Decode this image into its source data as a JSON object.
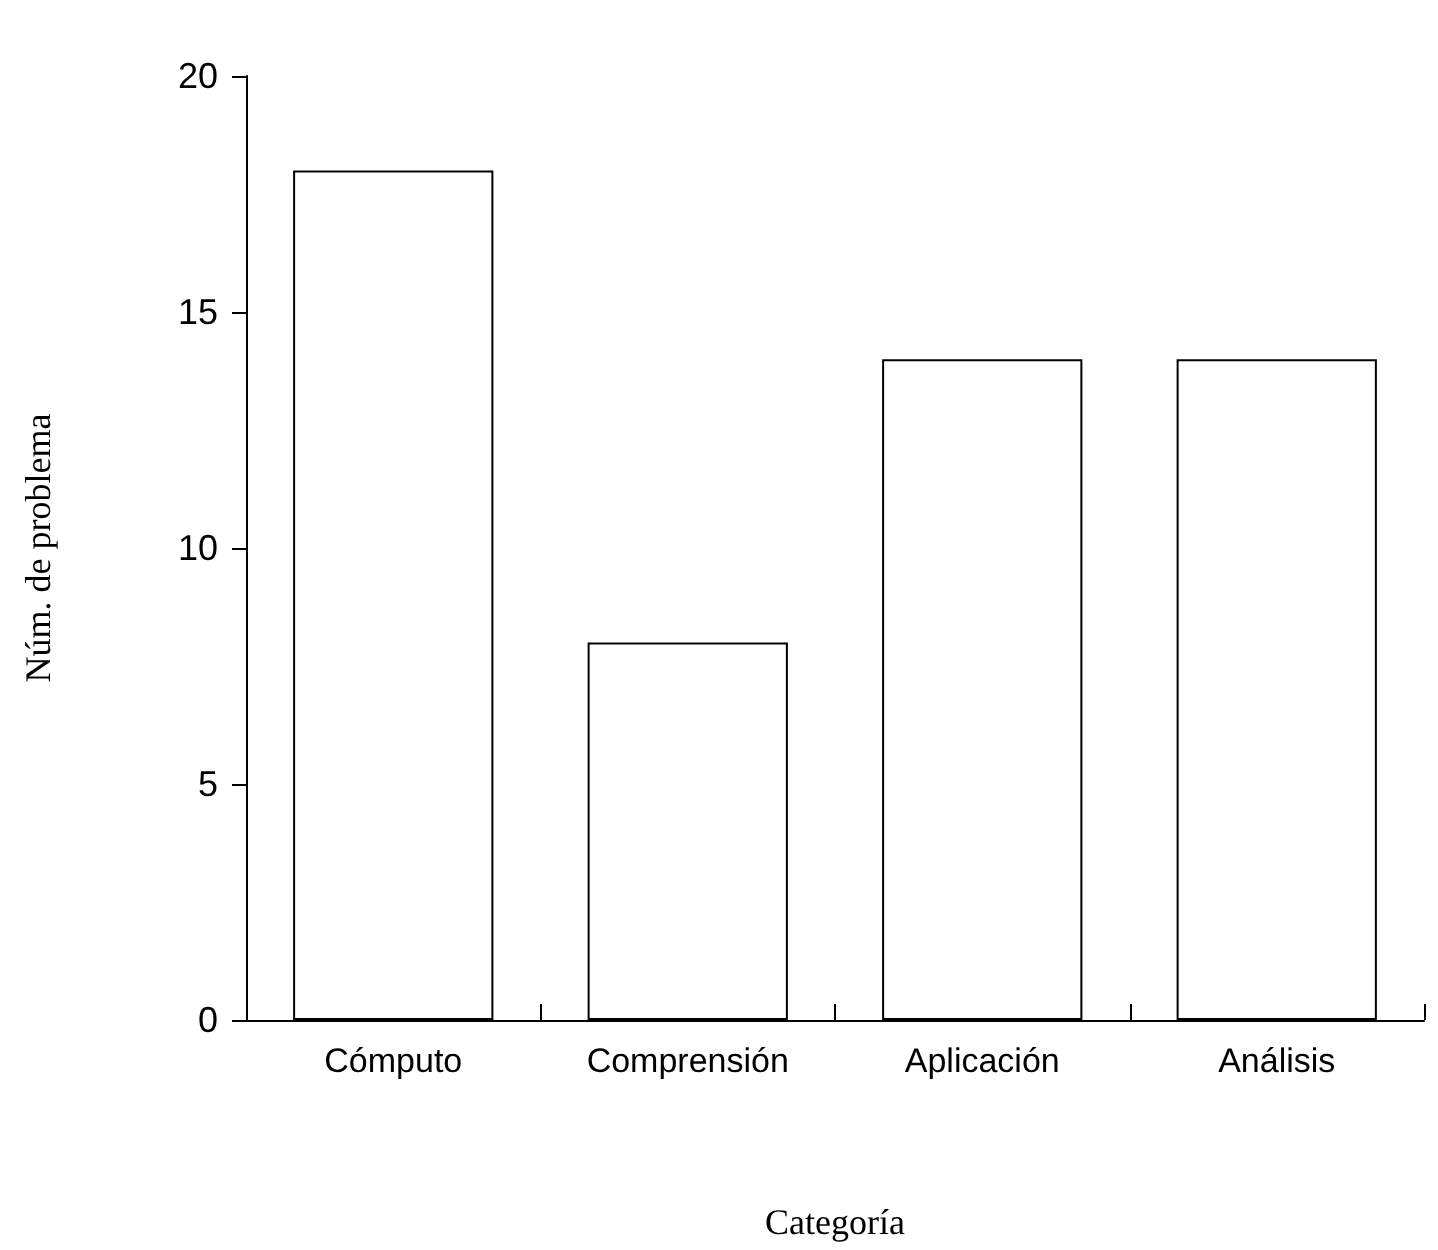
{
  "chart_data": {
    "type": "bar",
    "xlabel": "Categoría",
    "ylabel": "Núm. de problema",
    "categories": [
      "Cómputo",
      "Comprensión",
      "Aplicación",
      "Análisis"
    ],
    "values": [
      18,
      8,
      14,
      14
    ],
    "color": "#ffffff",
    "ylim": [
      0,
      20
    ],
    "yticks": [
      0,
      5,
      10,
      15,
      20
    ],
    "grid": false
  }
}
